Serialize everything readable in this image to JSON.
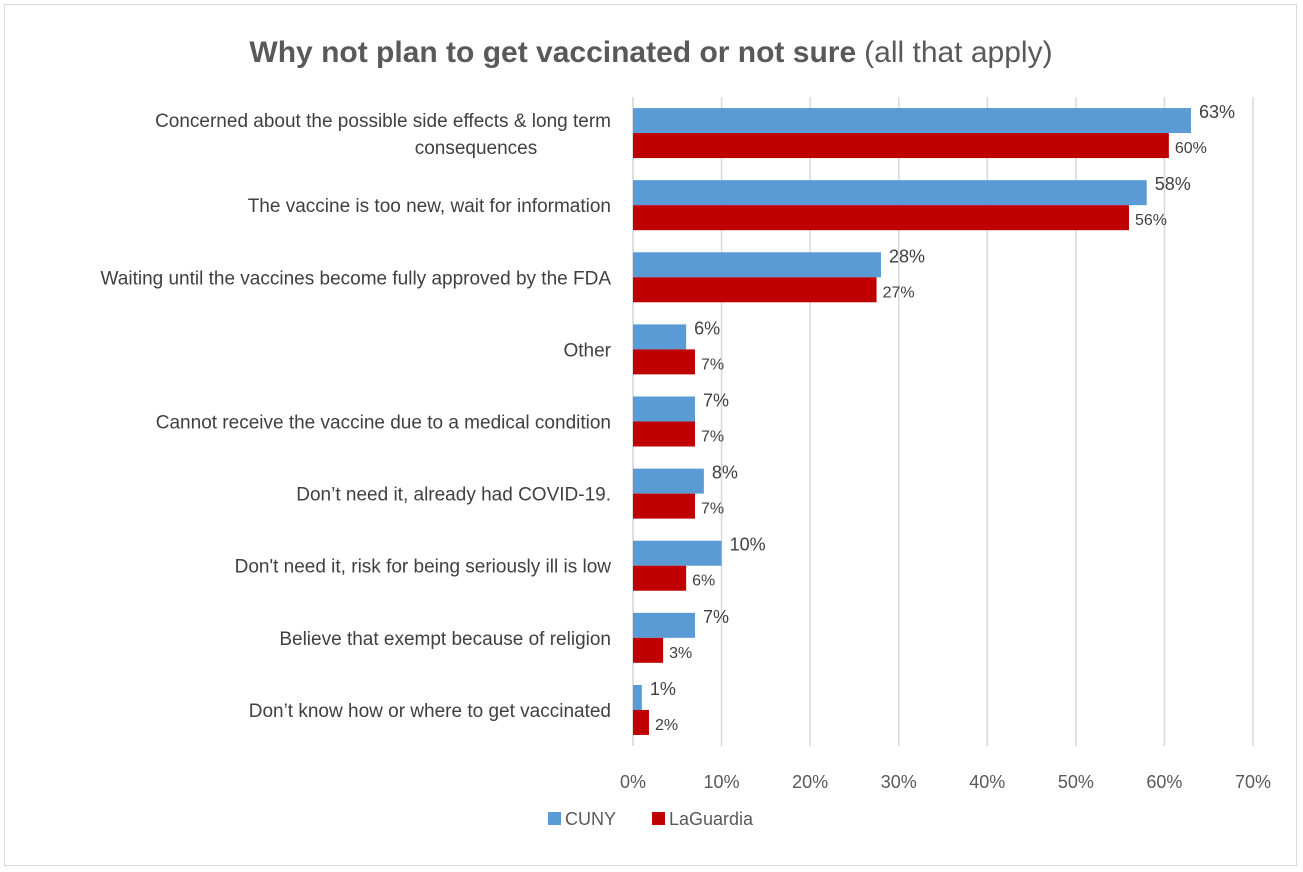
{
  "chart_data": {
    "type": "bar",
    "orientation": "horizontal",
    "title": "Why not plan to get vaccinated or not sure",
    "title_suffix": "(all that apply)",
    "categories": [
      [
        "Concerned about the possible side effects & long term",
        "consequences"
      ],
      [
        "The vaccine is too new, wait for information"
      ],
      [
        "Waiting until the vaccines become fully approved by the FDA"
      ],
      [
        "Other"
      ],
      [
        "Cannot receive the vaccine due to a medical condition"
      ],
      [
        "Don’t need it, already had COVID-19."
      ],
      [
        "Don't need it, risk for being seriously ill is low"
      ],
      [
        "Believe that exempt because of religion"
      ],
      [
        "Don’t know how or where to get vaccinated"
      ]
    ],
    "series": [
      {
        "name": "CUNY",
        "color": "#5b9bd5",
        "values": [
          63,
          58,
          28,
          6,
          7,
          8,
          10,
          7,
          1
        ],
        "labels": [
          "63%",
          "58%",
          "28%",
          "6%",
          "7%",
          "8%",
          "10%",
          "7%",
          "1%"
        ]
      },
      {
        "name": "LaGuardia",
        "color": "#c00000",
        "values": [
          60.5,
          56,
          27.5,
          7,
          7,
          7,
          6,
          3.4,
          1.8
        ],
        "labels": [
          "60%",
          "56%",
          "27%",
          "7%",
          "7%",
          "7%",
          "6%",
          "3%",
          "2%"
        ]
      }
    ],
    "xlim": [
      0,
      70
    ],
    "xticks": [
      0,
      10,
      20,
      30,
      40,
      50,
      60,
      70
    ],
    "xtick_labels": [
      "0%",
      "10%",
      "20%",
      "30%",
      "40%",
      "50%",
      "60%",
      "70%"
    ],
    "grid": "vertical",
    "legend_position": "bottom",
    "gridline_color": "#d9d9d9"
  }
}
